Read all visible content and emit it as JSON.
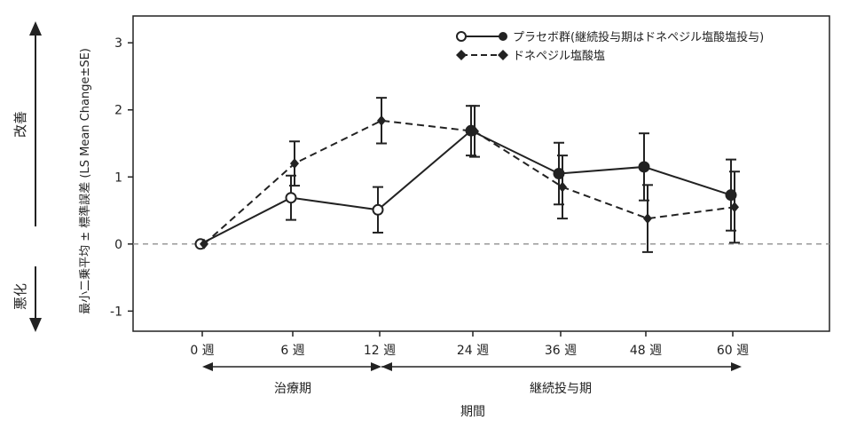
{
  "chart_data": {
    "type": "line",
    "categories": [
      "0 週",
      "6 週",
      "12 週",
      "24 週",
      "36 週",
      "48 週",
      "60 週"
    ],
    "ylabel": "最小二乗平均 ± 標準誤差 (LS Mean Change±SE)",
    "xlabel": "期間",
    "ylim": [
      -1.3,
      3.4
    ],
    "yticks": [
      "3",
      "2",
      "1",
      "0",
      "-1"
    ],
    "ytick_values": [
      3,
      2,
      1,
      0,
      -1
    ],
    "legend_position": "top-right",
    "grid": false,
    "reference_line": 0,
    "series": [
      {
        "name": "プラセボ群(継続投与期はドネペジル塩酸塩投与)",
        "style": "solid",
        "values": [
          0.0,
          0.69,
          0.51,
          1.69,
          1.05,
          1.15,
          0.73
        ],
        "error": [
          0.0,
          0.33,
          0.34,
          0.37,
          0.46,
          0.5,
          0.53
        ],
        "open_marker_indices": [
          0,
          1,
          2
        ]
      },
      {
        "name": "ドネペジル塩酸塩",
        "style": "dashed",
        "values": [
          0.0,
          1.2,
          1.84,
          1.68,
          0.85,
          0.38,
          0.55
        ],
        "error": [
          0.0,
          0.33,
          0.34,
          0.38,
          0.47,
          0.5,
          0.53
        ]
      }
    ],
    "phases": [
      "治療期",
      "継続投与期"
    ],
    "side_labels": {
      "top": "改善",
      "bottom": "悪化"
    }
  }
}
